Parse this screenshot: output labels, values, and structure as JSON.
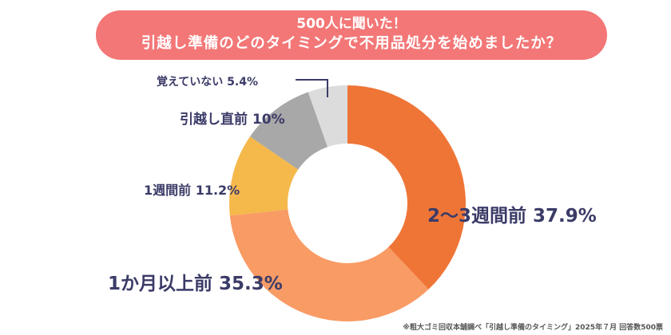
{
  "title_line1": "500人に聞いた！",
  "title_line2": "引越し準備のどのタイミングで不用品処分を始めましたか？",
  "footnote": "※粗大ゴミ回収本舗調べ「引越し準備のタイミング」2025年７月 回答数500票",
  "chart_data": {
    "type": "pie",
    "donut": true,
    "categories": [
      "2〜3週間前",
      "1か月以上前",
      "1週間前",
      "引越し直前",
      "覚えていない"
    ],
    "values": [
      37.9,
      35.3,
      11.2,
      10,
      5.4
    ],
    "labels": [
      "2〜3週間前 37.9%",
      "1か月以上前 35.3%",
      "1週間前 11.2%",
      "引越し直前 10%",
      "覚えていない 5.4%"
    ],
    "colors": [
      "#ef7537",
      "#f99b65",
      "#f5b84b",
      "#a8a8a8",
      "#dcdcdc"
    ],
    "unit": "%"
  }
}
